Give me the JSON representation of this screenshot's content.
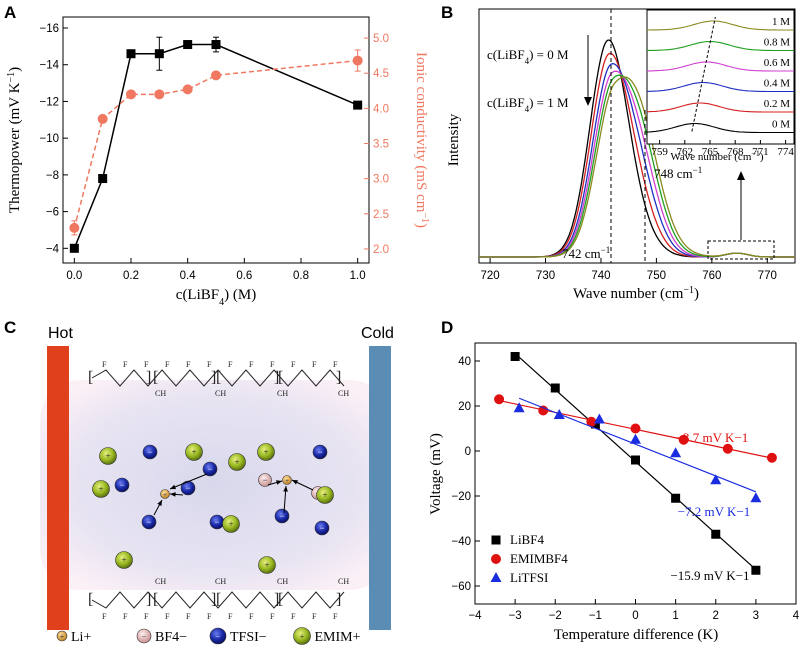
{
  "panels": {
    "a": "A",
    "b": "B",
    "c": "C",
    "d": "D"
  },
  "chart_data": [
    {
      "panel": "A",
      "type": "line",
      "xlabel": "c(LiBF4) (M)",
      "ylabel": "Thermopower (mV K−1)",
      "ylabel_right": "Ionic conductivity (mS cm−1)",
      "x_ticks": [
        "0.0",
        "0.2",
        "0.4",
        "0.6",
        "0.8",
        "1.0"
      ],
      "y_ticks": [
        "−4",
        "−6",
        "−8",
        "−10",
        "−12",
        "−14",
        "−16"
      ],
      "y2_ticks": [
        "2.0",
        "2.5",
        "3.0",
        "3.5",
        "4.0",
        "4.5",
        "5.0"
      ],
      "xlim": [
        -0.04,
        1.04
      ],
      "ylim": [
        -3.2,
        -16.6
      ],
      "y2lim": [
        1.8,
        5.3
      ],
      "series": [
        {
          "axis": "left",
          "color": "#000000",
          "x": [
            0,
            0.1,
            0.2,
            0.3,
            0.4,
            0.5,
            1.0
          ],
          "y": [
            -4.0,
            -7.8,
            -14.6,
            -14.6,
            -15.1,
            -15.1,
            -11.8
          ],
          "err": [
            0,
            0,
            0,
            0.9,
            0,
            0.4,
            0
          ]
        },
        {
          "axis": "right",
          "color": "#f07860",
          "x": [
            0,
            0.1,
            0.2,
            0.3,
            0.4,
            0.5,
            1.0
          ],
          "y": [
            2.3,
            3.85,
            4.2,
            4.2,
            4.27,
            4.47,
            4.68
          ],
          "err": [
            0.1,
            0,
            0,
            0,
            0,
            0,
            0.15
          ]
        }
      ]
    },
    {
      "panel": "B",
      "type": "line",
      "xlabel": "Wave number (cm−1)",
      "ylabel": "Intensity",
      "x_ticks": [
        "720",
        "730",
        "740",
        "750",
        "760",
        "770"
      ],
      "xlim": [
        718,
        775
      ],
      "annotations": {
        "top": "c(LiBF4) = 0 M",
        "bottom": "c(LiBF4) = 1 M",
        "left_peak": "742 cm−1",
        "right_peak": "748 cm−1"
      },
      "series": [
        {
          "name": "0 M",
          "color": "#000000",
          "peak": 741.3,
          "height": 1.0
        },
        {
          "name": "0.2 M",
          "color": "#d42020",
          "peak": 741.5,
          "height": 0.93
        },
        {
          "name": "0.4 M",
          "color": "#2030c0",
          "peak": 741.8,
          "height": 0.87
        },
        {
          "name": "0.6 M",
          "color": "#d040d0",
          "peak": 742.0,
          "height": 0.82
        },
        {
          "name": "0.8 M",
          "color": "#20a020",
          "peak": 742.2,
          "height": 0.78
        },
        {
          "name": "1 M",
          "color": "#8a8a20",
          "peak": 742.4,
          "height": 0.74
        }
      ],
      "inset": {
        "xlabel": "Wave number (cm−1)",
        "x_ticks": [
          "759",
          "762",
          "765",
          "768",
          "771",
          "774"
        ],
        "labels": [
          "1 M",
          "0.8 M",
          "0.6 M",
          "0.4 M",
          "0.2 M",
          "0 M"
        ]
      }
    },
    {
      "panel": "D",
      "type": "scatter",
      "xlabel": "Temperature difference (K)",
      "ylabel": "Voltage (mV)",
      "x_ticks": [
        "−4",
        "−3",
        "−2",
        "−1",
        "0",
        "1",
        "2",
        "3",
        "4"
      ],
      "y_ticks": [
        "40",
        "20",
        "0",
        "−20",
        "−40",
        "−60"
      ],
      "xlim": [
        -4,
        4
      ],
      "ylim": [
        -68,
        48
      ],
      "series": [
        {
          "name": "LiBF4",
          "color": "#000000",
          "marker": "square",
          "slope_label": "−15.9 mV K−1",
          "x": [
            -3,
            -2,
            -1,
            0,
            1,
            2,
            3
          ],
          "y": [
            42,
            28,
            12,
            -4,
            -21,
            -37,
            -53
          ]
        },
        {
          "name": "EMIMBF4",
          "color": "#e01010",
          "marker": "circle",
          "slope_label": "−3.7 mV K−1",
          "x": [
            -3.4,
            -2.3,
            -1.1,
            0,
            1.2,
            2.3,
            3.4
          ],
          "y": [
            23,
            18,
            13,
            10,
            5,
            1,
            -3
          ]
        },
        {
          "name": "LiTFSI",
          "color": "#1a2ce0",
          "marker": "triangle",
          "slope_label": "−7.2 mV K−1",
          "x": [
            -2.9,
            -1.9,
            -0.9,
            0,
            1.0,
            2.0,
            3.0
          ],
          "y": [
            19,
            16,
            14,
            5,
            -1,
            -13,
            -21
          ]
        }
      ]
    }
  ],
  "schematic": {
    "hot_label": "Hot",
    "cold_label": "Cold",
    "legend": [
      {
        "symbol": "+",
        "label": "Li+",
        "color": "#d8a040"
      },
      {
        "symbol": "−",
        "label": "BF4−",
        "color": "#e8b4b4"
      },
      {
        "symbol": "−",
        "label": "TFSI−",
        "color": "#1a2aa8"
      },
      {
        "symbol": "+",
        "label": "EMIM+",
        "color": "#8cb020"
      }
    ]
  }
}
